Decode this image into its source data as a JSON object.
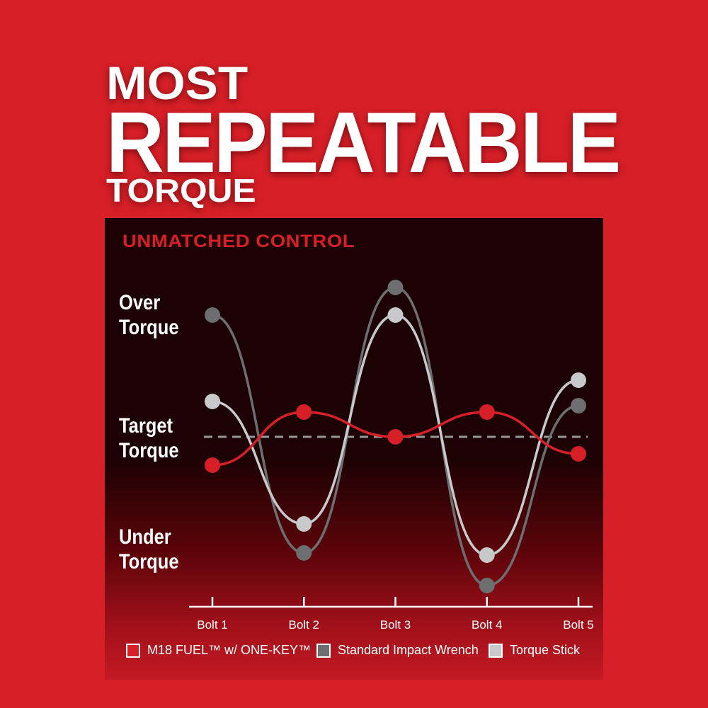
{
  "headline": {
    "line1": "MOST",
    "line2": "REPEATABLE",
    "line3": "TORQUE"
  },
  "chart_data": {
    "type": "line",
    "subtitle": "UNMATCHED CONTROL",
    "categories": [
      "Bolt 1",
      "Bolt 2",
      "Bolt 3",
      "Bolt 4",
      "Bolt 5"
    ],
    "y_category_labels": {
      "over": "Over Torque",
      "target": "Target Torque",
      "under": "Under Torque"
    },
    "y_scale_note": "relative deviation from target (target = 0); no numeric axis printed",
    "ylim": [
      -2.4,
      2.4
    ],
    "target_line": {
      "value": 0,
      "style": "dashed",
      "color": "#9a9a9a"
    },
    "series": [
      {
        "name": "M18 FUEL™ w/ ONE-KEY™",
        "color": "#d71f27",
        "values": [
          -0.4,
          0.35,
          0,
          0.35,
          -0.24
        ]
      },
      {
        "name": "Standard Impact Wrench",
        "color": "#6d6e70",
        "values": [
          1.72,
          -1.64,
          2.11,
          -2.1,
          0.44
        ]
      },
      {
        "name": "Torque Stick",
        "color": "#c8c9cb",
        "values": [
          0.5,
          -1.23,
          1.72,
          -1.67,
          0.8
        ]
      }
    ],
    "legend_position": "bottom",
    "grid": false
  }
}
